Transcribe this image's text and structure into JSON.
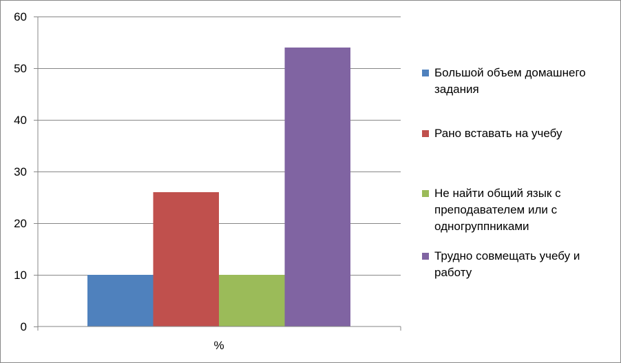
{
  "chart_data": {
    "type": "bar",
    "categories": [
      "%"
    ],
    "series": [
      {
        "name": "Большой объем домашнего задания",
        "values": [
          10
        ],
        "color": "#4F81BD"
      },
      {
        "name": "Рано вставать на учебу",
        "values": [
          26
        ],
        "color": "#C0504D"
      },
      {
        "name": "Не найти общий язык с преподавателем или с одногруппниками",
        "values": [
          10
        ],
        "color": "#9BBB59"
      },
      {
        "name": "Трудно совмещать учебу и работу",
        "values": [
          54
        ],
        "color": "#8064A2"
      }
    ],
    "yticks": [
      "0",
      "10",
      "20",
      "30",
      "40",
      "50",
      "60"
    ],
    "ylim": [
      0,
      60
    ],
    "title": "",
    "xlabel": "",
    "ylabel": "",
    "grid": true,
    "legend_position": "right"
  }
}
